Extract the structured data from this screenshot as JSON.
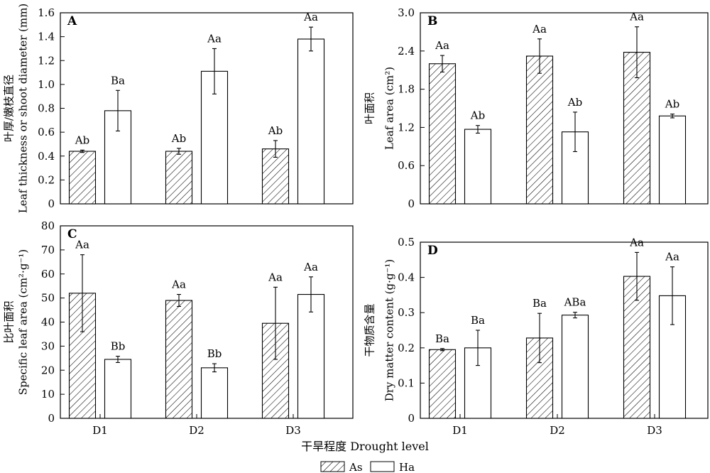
{
  "x_title": "干旱程度 Drought level",
  "legend": [
    {
      "name": "As",
      "pattern": "hatch"
    },
    {
      "name": "Ha",
      "pattern": "white"
    }
  ],
  "chart_data": [
    {
      "type": "bar",
      "panel": "A",
      "ylabel_cn": "叶厚/嫩枝直径",
      "ylabel_en": "Leaf thickness or shoot diameter (mm)",
      "categories": [
        "D1",
        "D2",
        "D3"
      ],
      "ylim": [
        0,
        1.6
      ],
      "yticks": [
        "0",
        "0.2",
        "0.4",
        "0.6",
        "0.8",
        "1.0",
        "1.2",
        "1.4",
        "1.6"
      ],
      "series": [
        {
          "name": "As",
          "values": [
            0.44,
            0.44,
            0.46
          ],
          "errors": [
            0.01,
            0.025,
            0.07
          ],
          "labels": [
            "Ab",
            "Ab",
            "Ab"
          ]
        },
        {
          "name": "Ha",
          "values": [
            0.78,
            1.11,
            1.38
          ],
          "errors": [
            0.17,
            0.19,
            0.1
          ],
          "labels": [
            "Ba",
            "Aa",
            "Aa"
          ]
        }
      ]
    },
    {
      "type": "bar",
      "panel": "B",
      "ylabel_cn": "叶面积",
      "ylabel_en": "Leaf area (cm²)",
      "categories": [
        "D1",
        "D2",
        "D3"
      ],
      "ylim": [
        0,
        3.0
      ],
      "yticks": [
        "0",
        "0.6",
        "1.2",
        "1.8",
        "2.4",
        "3.0"
      ],
      "series": [
        {
          "name": "As",
          "values": [
            2.2,
            2.32,
            2.38
          ],
          "errors": [
            0.13,
            0.27,
            0.4
          ],
          "labels": [
            "Aa",
            "Aa",
            "Aa"
          ]
        },
        {
          "name": "Ha",
          "values": [
            1.17,
            1.13,
            1.38
          ],
          "errors": [
            0.06,
            0.31,
            0.03
          ],
          "labels": [
            "Ab",
            "Ab",
            "Ab"
          ]
        }
      ]
    },
    {
      "type": "bar",
      "panel": "C",
      "ylabel_cn": "比叶面积",
      "ylabel_en": "Specific leaf area (cm²·g⁻¹)",
      "categories": [
        "D1",
        "D2",
        "D3"
      ],
      "ylim": [
        0,
        80
      ],
      "yticks": [
        "0",
        "10",
        "20",
        "30",
        "40",
        "50",
        "60",
        "70",
        "80"
      ],
      "series": [
        {
          "name": "As",
          "values": [
            52,
            49,
            39.5
          ],
          "errors": [
            16,
            2.5,
            15
          ],
          "labels": [
            "Aa",
            "Aa",
            "Aa"
          ]
        },
        {
          "name": "Ha",
          "values": [
            24.5,
            21,
            51.5
          ],
          "errors": [
            1.3,
            1.7,
            7.3
          ],
          "labels": [
            "Bb",
            "Bb",
            "Aa"
          ]
        }
      ]
    },
    {
      "type": "bar",
      "panel": "D",
      "ylabel_cn": "干物质含量",
      "ylabel_en": "Dry matter content (g·g⁻¹)",
      "categories": [
        "D1",
        "D2",
        "D3"
      ],
      "ylim": [
        0,
        0.5
      ],
      "yticks": [
        "0",
        "0.1",
        "0.2",
        "0.3",
        "0.4",
        "0.5"
      ],
      "series": [
        {
          "name": "As",
          "values": [
            0.195,
            0.228,
            0.403
          ],
          "errors": [
            0.003,
            0.07,
            0.068
          ],
          "labels": [
            "Ba",
            "Ba",
            "Aa"
          ]
        },
        {
          "name": "Ha",
          "values": [
            0.2,
            0.293,
            0.348
          ],
          "errors": [
            0.05,
            0.008,
            0.082
          ],
          "labels": [
            "Ba",
            "ABa",
            "Aa"
          ]
        }
      ]
    }
  ]
}
